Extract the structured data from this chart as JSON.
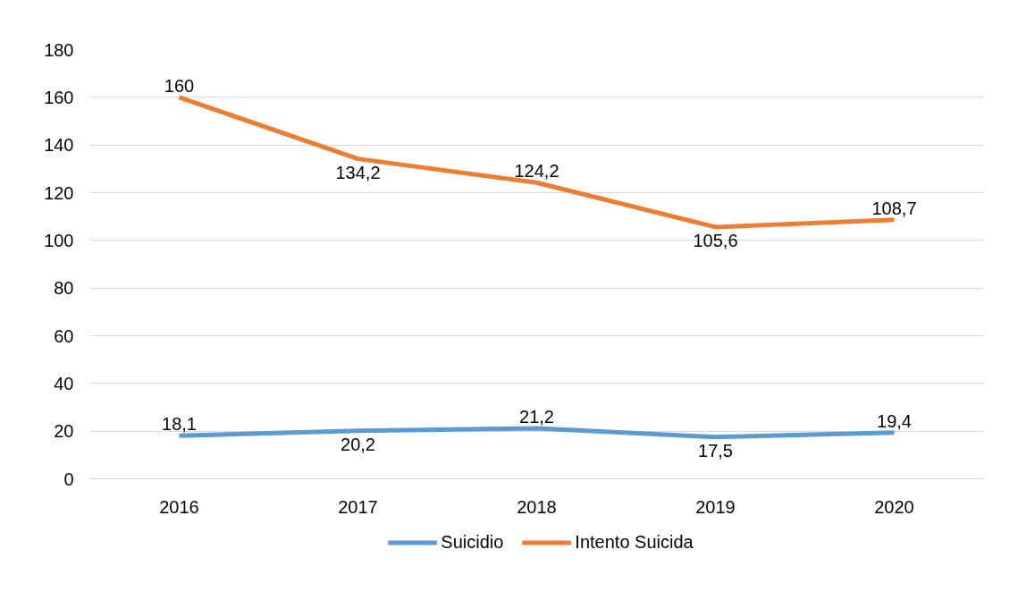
{
  "chart_data": {
    "type": "line",
    "categories": [
      "2016",
      "2017",
      "2018",
      "2019",
      "2020"
    ],
    "series": [
      {
        "name": "Suicidio",
        "color": "#5b9bd5",
        "values": [
          18.1,
          20.2,
          21.2,
          17.5,
          19.4
        ],
        "value_labels": [
          "18,1",
          "20,2",
          "21,2",
          "17,5",
          "19,4"
        ]
      },
      {
        "name": "Intento Suicida",
        "color": "#ed7d31",
        "values": [
          160,
          134.2,
          124.2,
          105.6,
          108.7
        ],
        "value_labels": [
          "160",
          "134,2",
          "124,2",
          "105,6",
          "108,7"
        ]
      }
    ],
    "ylim": [
      0,
      180
    ],
    "yticks": [
      0,
      20,
      40,
      60,
      80,
      100,
      120,
      140,
      160,
      180
    ],
    "grid": "y",
    "legend": "bottom",
    "marker": "none",
    "line_style": "solid"
  }
}
